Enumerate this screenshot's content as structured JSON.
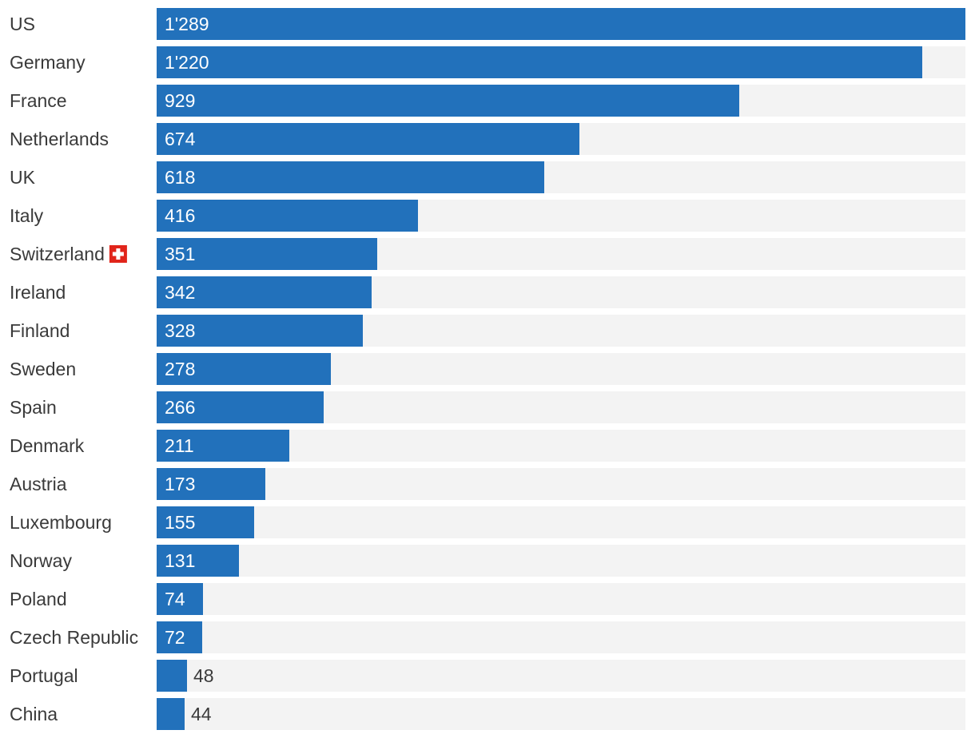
{
  "chart_data": {
    "type": "bar",
    "orientation": "horizontal",
    "categories": [
      "US",
      "Germany",
      "France",
      "Netherlands",
      "UK",
      "Italy",
      "Switzerland",
      "Ireland",
      "Finland",
      "Sweden",
      "Spain",
      "Denmark",
      "Austria",
      "Luxembourg",
      "Norway",
      "Poland",
      "Czech Republic",
      "Portugal",
      "China"
    ],
    "values": [
      1289,
      1220,
      929,
      674,
      618,
      416,
      351,
      342,
      328,
      278,
      266,
      211,
      173,
      155,
      131,
      74,
      72,
      48,
      44
    ],
    "value_labels": [
      "1'289",
      "1'220",
      "929",
      "674",
      "618",
      "416",
      "351",
      "342",
      "328",
      "278",
      "266",
      "211",
      "173",
      "155",
      "131",
      "74",
      "72",
      "48",
      "44"
    ],
    "xlim": [
      0,
      1289
    ],
    "grid": false,
    "legend": "none",
    "highlight": {
      "category": "Switzerland",
      "icon": "swiss-flag-icon"
    },
    "colors": {
      "bar": "#2271bb",
      "track": "#f3f3f3",
      "flag": "#e1251b"
    }
  }
}
